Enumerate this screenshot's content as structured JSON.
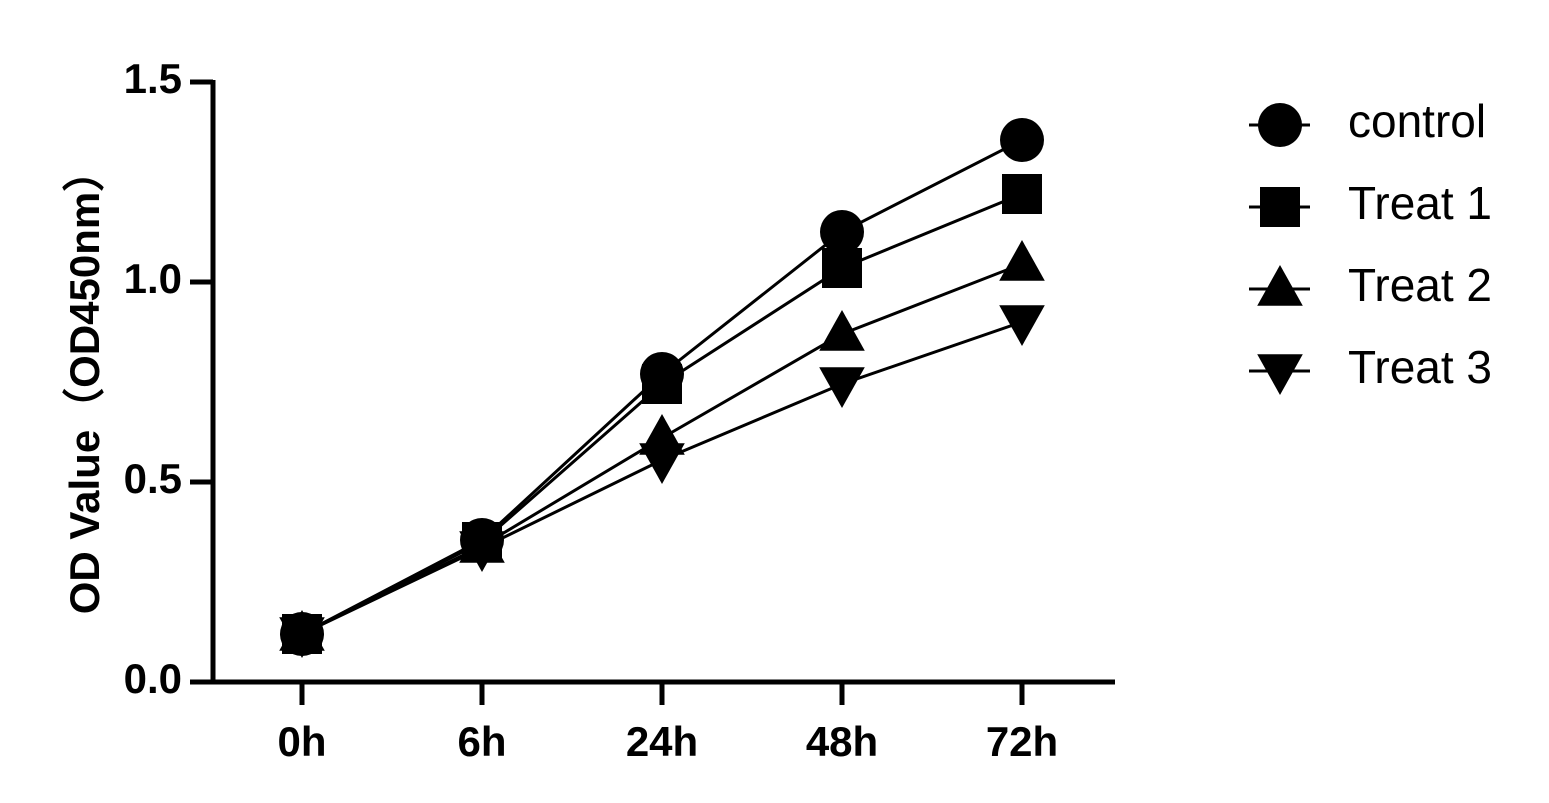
{
  "chart_data": {
    "type": "line",
    "categories": [
      "0h",
      "6h",
      "24h",
      "48h",
      "72h"
    ],
    "ylabel": "OD Value（OD450nm）",
    "xlabel": "",
    "ylim": [
      0,
      1.5
    ],
    "yticks": [
      "0.0",
      "0.5",
      "1.0",
      "1.5"
    ],
    "yticks_values": [
      0,
      0.5,
      1.0,
      1.5
    ],
    "grid": false,
    "legend_position": "top-right",
    "series": [
      {
        "name": "control",
        "marker": "circle",
        "color": "#000000",
        "values": [
          0.12,
          0.355,
          0.77,
          1.125,
          1.355
        ]
      },
      {
        "name": "Treat 1",
        "marker": "square",
        "color": "#000000",
        "values": [
          0.12,
          0.35,
          0.745,
          1.035,
          1.22
        ]
      },
      {
        "name": "Treat 2",
        "marker": "triangle-up",
        "color": "#000000",
        "values": [
          0.12,
          0.34,
          0.61,
          0.87,
          1.045
        ]
      },
      {
        "name": "Treat 3",
        "marker": "triangle-down",
        "color": "#000000",
        "values": [
          0.12,
          0.335,
          0.555,
          0.745,
          0.9
        ]
      }
    ]
  }
}
